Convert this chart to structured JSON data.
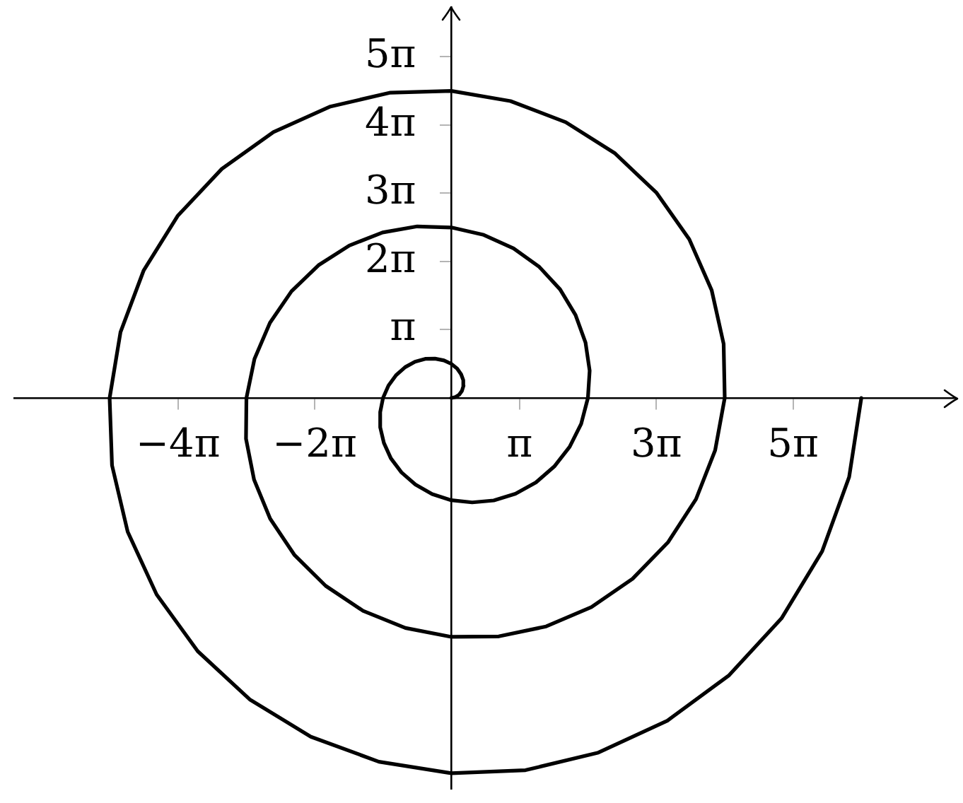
{
  "chart_data": {
    "type": "line",
    "x": [
      0,
      0.19,
      0.36,
      0.49,
      0.56,
      0.55,
      0.45,
      0.27,
      0,
      -0.34,
      -0.75,
      -1.2,
      -1.67,
      -2.12,
      -2.54,
      -2.89,
      -3.14,
      -3.27,
      -3.27,
      -3.1,
      -2.78,
      -2.29,
      -1.65,
      -0.88,
      0,
      0.96,
      1.95,
      2.95,
      3.89,
      4.73,
      5.44,
      5.97,
      6.28,
      6.36,
      6.17,
      5.71,
      5.0,
      4.04,
      2.86,
      1.49,
      0,
      -1.57,
      -3.16,
      -4.69,
      -6.11,
      -7.35,
      -8.34,
      -9.05,
      -9.42,
      -9.44,
      -9.07,
      -8.33,
      -7.22,
      -5.78,
      -4.06,
      -2.11,
      0,
      2.18,
      4.36,
      6.44,
      8.33,
      9.96,
      11.25,
      12.13,
      12.57,
      12.52,
      11.97,
      10.94,
      9.44,
      7.53,
      5.26,
      2.72,
      0,
      -2.8,
      -5.56,
      -8.18,
      -10.55,
      -12.57,
      -14.15,
      -15.21,
      -15.71,
      -15.6,
      -14.88,
      -13.55,
      -11.66,
      -9.27,
      -6.46,
      -3.33,
      0,
      3.41,
      6.76,
      9.93,
      12.77,
      15.18,
      17.05,
      18.29,
      18.85
    ],
    "series": [
      {
        "color": "#000000",
        "values": [
          0,
          0.04,
          0.15,
          0.33,
          0.56,
          0.82,
          1.09,
          1.35,
          1.57,
          1.73,
          1.81,
          1.8,
          1.67,
          1.42,
          1.05,
          0.57,
          0,
          -0.65,
          -1.35,
          -2.07,
          -2.78,
          -3.43,
          -3.99,
          -4.43,
          -4.71,
          -4.81,
          -4.72,
          -4.41,
          -3.89,
          -3.16,
          -2.25,
          -1.19,
          0,
          1.26,
          2.55,
          3.82,
          5.0,
          6.04,
          6.89,
          7.51,
          7.85,
          7.9,
          7.62,
          7.02,
          6.11,
          4.91,
          3.46,
          1.8,
          0,
          -1.88,
          -3.76,
          -5.56,
          -7.22,
          -8.65,
          -9.8,
          -10.59,
          -11.0,
          -10.98,
          -10.52,
          -9.63,
          -8.33,
          -6.65,
          -4.66,
          -2.41,
          0,
          2.49,
          4.96,
          7.31,
          9.44,
          11.26,
          12.7,
          13.67,
          14.14,
          14.06,
          13.42,
          12.24,
          10.55,
          8.4,
          5.86,
          3.03,
          0,
          -3.1,
          -6.16,
          -9.05,
          -11.66,
          -13.88,
          -15.6,
          -16.75,
          -17.28,
          -17.14,
          -16.33,
          -14.86,
          -12.77,
          -10.15,
          -7.06,
          -3.64,
          0
        ]
      }
    ],
    "xlim": [
      -20.1,
      23.2
    ],
    "ylim": [
      -18,
      18
    ],
    "xticks": [
      {
        "value": -12.566,
        "label": "−4π"
      },
      {
        "value": -6.2832,
        "label": "−2π"
      },
      {
        "value": 3.1416,
        "label": "π"
      },
      {
        "value": 9.4248,
        "label": "3π"
      },
      {
        "value": 15.708,
        "label": "5π"
      }
    ],
    "yticks": [
      {
        "value": 3.1416,
        "label": "π"
      },
      {
        "value": 6.2832,
        "label": "2π"
      },
      {
        "value": 9.4248,
        "label": "3π"
      },
      {
        "value": 12.566,
        "label": "4π"
      },
      {
        "value": 15.708,
        "label": "5π"
      }
    ],
    "line_style": "solid"
  }
}
